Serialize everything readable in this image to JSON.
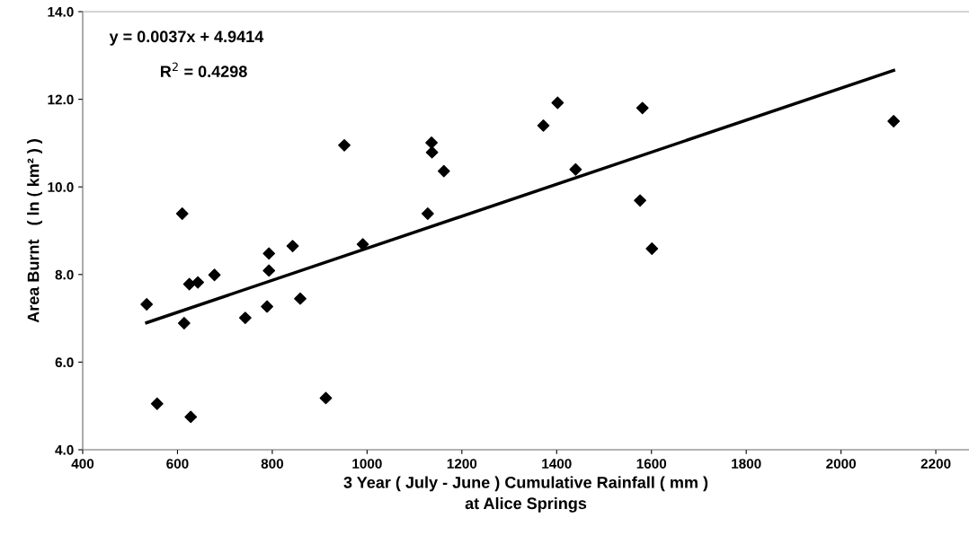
{
  "chart_data": {
    "type": "scatter",
    "xlabel": "3 Year ( July - June ) Cumulative Rainfall ( mm )\nat Alice Springs",
    "ylabel": "Area Burnt   ( ln ( km² ) )",
    "annotations": [
      "y = 0.0037x + 4.9414",
      "R$^{2}$ = 0.4298"
    ],
    "xlim": [
      400,
      2270
    ],
    "xticks": [
      400,
      600,
      800,
      1000,
      1200,
      1400,
      1600,
      1800,
      2000,
      2200
    ],
    "ylim": [
      4.0,
      14.0
    ],
    "yticks": [
      {
        "value": 4,
        "label": "4.0"
      },
      {
        "value": 6,
        "label": "6.0"
      },
      {
        "value": 8,
        "label": "8.0"
      },
      {
        "value": 10,
        "label": "10.0"
      },
      {
        "value": 12,
        "label": "12.0"
      },
      {
        "value": 14,
        "label": "14.0"
      }
    ],
    "grid": false,
    "series": [
      {
        "marker": "diamond",
        "color": "#000000",
        "x": [
          535,
          610,
          614,
          557,
          628,
          625,
          643,
          678,
          743,
          789,
          793,
          793,
          843,
          859,
          913,
          952,
          991,
          1128,
          1136,
          1137,
          1162,
          1372,
          1402,
          1440,
          1581,
          1576,
          1601,
          2111
        ],
        "values": [
          7.32,
          9.39,
          6.89,
          5.05,
          4.75,
          7.78,
          7.82,
          7.99,
          7.01,
          7.27,
          8.09,
          8.48,
          8.65,
          7.45,
          5.18,
          10.95,
          8.69,
          9.39,
          11.01,
          10.79,
          10.36,
          11.4,
          11.92,
          10.4,
          11.8,
          9.69,
          8.59,
          11.5
        ]
      },
      {
        "type": "line",
        "marker": "none",
        "color": "#000000",
        "line_style": "solid",
        "x": [
          535,
          2111
        ],
        "values": [
          6.9,
          12.66
        ]
      }
    ]
  }
}
